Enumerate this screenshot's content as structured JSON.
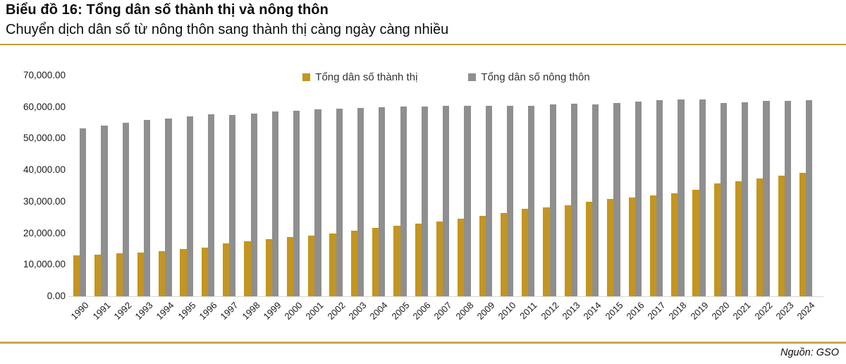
{
  "header": {
    "title": "Biểu đồ 16: Tổng dân số thành thị và nông thôn",
    "subtitle": "Chuyển dịch dân số từ nông thôn sang thành thị càng ngày càng nhiều"
  },
  "footer": {
    "source": "Nguồn: GSO"
  },
  "colors": {
    "urban": "#c4951f",
    "rural": "#8f8f8f",
    "gold_rule": "#c9a227",
    "baseline": "#d8d8d8"
  },
  "chart_data": {
    "type": "bar",
    "title": "Tổng dân số thành thị và nông thôn",
    "xlabel": "",
    "ylabel": "",
    "unit_hint": "nghìn người",
    "grid": false,
    "legend_position": "top-center",
    "ylim": [
      0,
      70000
    ],
    "y_ticks_values": [
      0,
      10000,
      20000,
      30000,
      40000,
      50000,
      60000,
      70000
    ],
    "y_ticks_labels": [
      "0.00",
      "10,000.00",
      "20,000.00",
      "30,000.00",
      "40,000.00",
      "50,000.00",
      "60,000.00",
      "70,000.00"
    ],
    "categories": [
      1990,
      1991,
      1992,
      1993,
      1994,
      1995,
      1996,
      1997,
      1998,
      1999,
      2000,
      2001,
      2002,
      2003,
      2004,
      2005,
      2006,
      2007,
      2008,
      2009,
      2010,
      2011,
      2012,
      2013,
      2014,
      2015,
      2016,
      2017,
      2018,
      2019,
      2020,
      2021,
      2022,
      2023,
      2024
    ],
    "series": [
      {
        "name": "Tổng dân số thành thị",
        "color": "#c4951f",
        "values": [
          12880,
          13230,
          13590,
          13960,
          14430,
          14940,
          15420,
          16840,
          17470,
          18080,
          18730,
          19300,
          19870,
          20730,
          21600,
          22330,
          23050,
          23750,
          24670,
          25580,
          26510,
          27720,
          28270,
          28880,
          30030,
          30880,
          31370,
          31930,
          32640,
          33820,
          35870,
          36560,
          37360,
          38230,
          39220
        ]
      },
      {
        "name": "Tổng dân số nông thôn",
        "color": "#8f8f8f",
        "values": [
          53140,
          54080,
          55030,
          55990,
          56400,
          57060,
          57740,
          57470,
          57990,
          58510,
          58910,
          59220,
          59500,
          59700,
          59900,
          60060,
          60270,
          60400,
          60420,
          60440,
          60420,
          60350,
          60800,
          61100,
          60750,
          61200,
          61700,
          62090,
          62450,
          62400,
          61350,
          61570,
          61870,
          62000,
          62150
        ]
      }
    ]
  }
}
